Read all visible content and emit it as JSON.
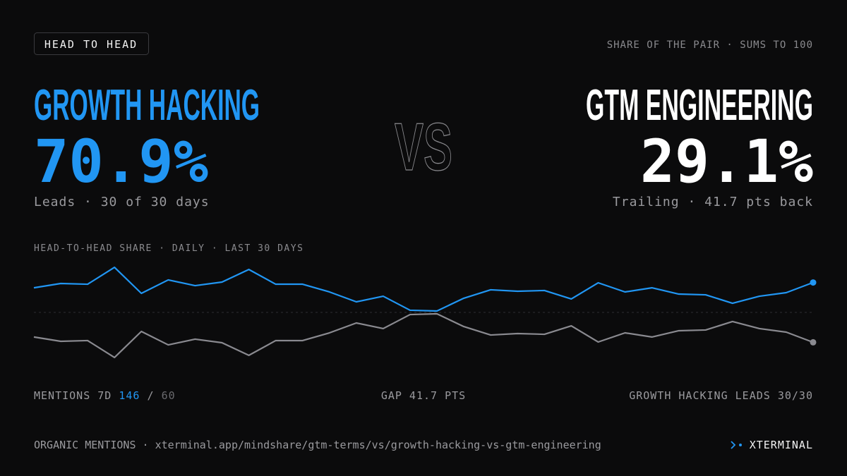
{
  "badge": "HEAD TO HEAD",
  "caption": "SHARE OF THE PAIR · SUMS TO 100",
  "left": {
    "name": "GROWTH HACKING",
    "share": "70.9%",
    "note": "Leads · 30 of 30 days"
  },
  "vs": "VS",
  "right": {
    "name": "GTM ENGINEERING",
    "share": "29.1%",
    "note": "Trailing · 41.7 pts back"
  },
  "chart_data": {
    "type": "line",
    "title": "HEAD-TO-HEAD SHARE · DAILY · LAST 30 DAYS",
    "categories": [
      null,
      null,
      null,
      null,
      null,
      null,
      null,
      null,
      null,
      null,
      null,
      null,
      null,
      null,
      null,
      null,
      null,
      null,
      null,
      null,
      null,
      null,
      null,
      null,
      null,
      null,
      null,
      null,
      null,
      null
    ],
    "series": [
      {
        "color": "#2196f3",
        "values": [
          67.2,
          70.2,
          69.7,
          81.5,
          63.3,
          72.7,
          68.7,
          71.2,
          80.0,
          69.7,
          69.7,
          64.3,
          57.4,
          61.3,
          51.5,
          51.0,
          59.9,
          65.8,
          64.8,
          65.3,
          59.4,
          70.7,
          64.3,
          67.2,
          62.8,
          62.3,
          56.4,
          61.3,
          63.8,
          70.9
        ]
      },
      {
        "color": "#8a8a90",
        "values": [
          32.8,
          29.8,
          30.3,
          18.5,
          36.7,
          27.3,
          31.3,
          28.8,
          20.0,
          30.3,
          30.3,
          35.7,
          42.6,
          38.7,
          48.5,
          49.0,
          40.1,
          34.2,
          35.2,
          34.7,
          40.6,
          29.3,
          35.7,
          32.8,
          37.2,
          37.7,
          43.6,
          38.7,
          36.2,
          29.1
        ]
      }
    ],
    "ylim": [
      15,
      85
    ],
    "midline": 50,
    "end_markers": true
  },
  "stats": {
    "mentions_label": "MENTIONS 7D",
    "mentions_left": "146",
    "mentions_separator": "/",
    "mentions_right": "60",
    "gap": "GAP 41.7 PTS",
    "lead": "GROWTH HACKING LEADS 30/30"
  },
  "footer": {
    "source": "ORGANIC MENTIONS ·",
    "url": "xterminal.app/mindshare/gtm-terms/vs/growth-hacking-vs-gtm-engineering",
    "brand": "XTERMINAL"
  }
}
